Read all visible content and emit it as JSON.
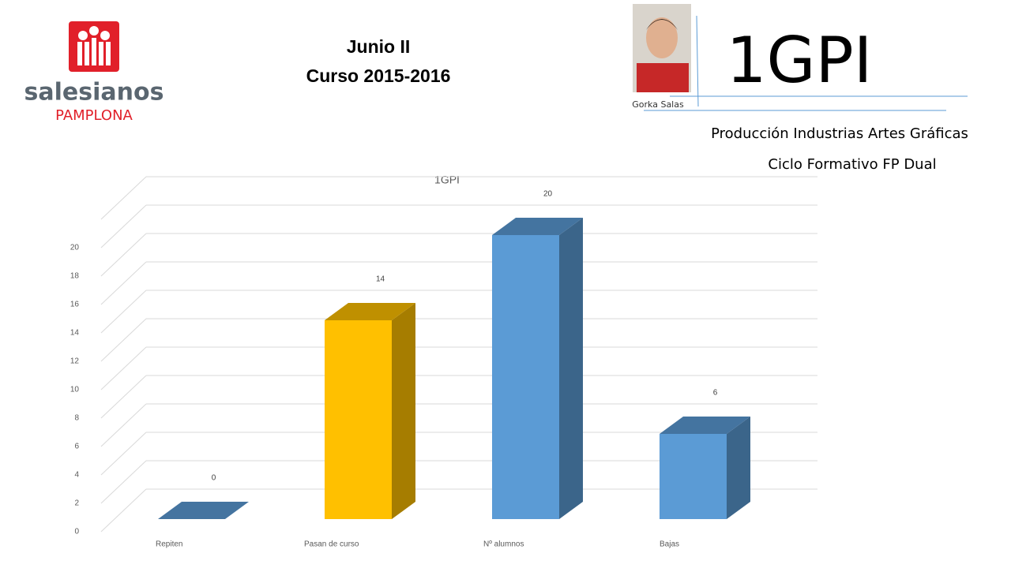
{
  "header": {
    "logo_name": "salesianos",
    "logo_place": "PAMPLONA",
    "session": "Junio II",
    "course": "Curso 2015-2016",
    "teacher": "Gorka Salas",
    "group": "1GPI",
    "program": "Producción Industrias Artes Gráficas",
    "cycle": "Ciclo Formativo FP Dual"
  },
  "chart_data": {
    "type": "bar3d",
    "title": "1GPI",
    "categories": [
      "Repiten",
      "Pasan de curso",
      "Nº alumnos",
      "Bajas"
    ],
    "values": [
      0,
      14,
      20,
      6
    ],
    "colors": [
      "#5b9bd5",
      "#ffc000",
      "#5b9bd5",
      "#5b9bd5"
    ],
    "ylim": [
      0,
      22
    ],
    "yticks": [
      0,
      2,
      4,
      6,
      8,
      10,
      12,
      14,
      16,
      18,
      20
    ],
    "grid": true
  }
}
